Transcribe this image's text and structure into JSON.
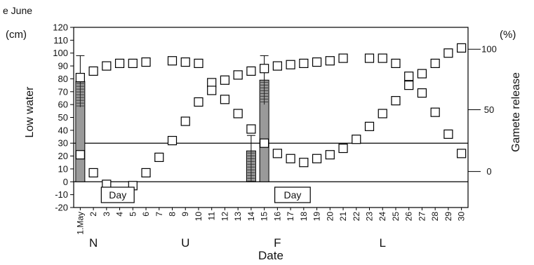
{
  "chart_data": {
    "type": "scatter",
    "title": "e June",
    "left_axis": {
      "unit": "(cm)",
      "label": "Low water",
      "ylim": [
        -20,
        120
      ],
      "ticks": [
        -20,
        -10,
        0,
        10,
        20,
        30,
        40,
        50,
        60,
        70,
        80,
        90,
        100,
        110,
        120
      ]
    },
    "right_axis": {
      "unit": "(%)",
      "label": "Gamete release",
      "ticks": [
        0,
        50,
        100
      ],
      "tick_positions_in_left_units": [
        8,
        56,
        103
      ]
    },
    "xlabel": "Date",
    "x_ticks": [
      "1.May",
      "2",
      "3",
      "4",
      "5",
      "6",
      "7",
      "8",
      "9",
      "10",
      "11",
      "12",
      "13",
      "14",
      "15",
      "16",
      "17",
      "18",
      "19",
      "20",
      "21",
      "22",
      "23",
      "24",
      "25",
      "26",
      "27",
      "28",
      "29",
      "30"
    ],
    "moon_phases": [
      {
        "label": "N",
        "x": 2
      },
      {
        "label": "U",
        "x": 9
      },
      {
        "label": "F",
        "x": 16
      },
      {
        "label": "L",
        "x": 24
      }
    ],
    "day_boxes": [
      {
        "label": "Day",
        "x_from": 2.6,
        "x_to": 5.1
      },
      {
        "label": "Day",
        "x_from": 15.8,
        "x_to": 18.5
      }
    ],
    "reference_lines": [
      {
        "y": 30
      },
      {
        "y": 0
      }
    ],
    "series": [
      {
        "marker": "square",
        "points": [
          [
            1,
            81
          ],
          [
            2,
            86
          ],
          [
            3,
            90
          ],
          [
            4,
            92
          ],
          [
            5,
            92
          ],
          [
            6,
            93
          ],
          [
            8,
            94
          ],
          [
            9,
            93
          ],
          [
            10,
            92
          ],
          [
            11,
            77
          ],
          [
            12,
            79
          ],
          [
            13,
            83
          ],
          [
            14,
            86
          ],
          [
            15,
            88
          ],
          [
            16,
            90
          ],
          [
            17,
            91
          ],
          [
            18,
            92
          ],
          [
            19,
            93
          ],
          [
            20,
            94
          ],
          [
            21,
            96
          ],
          [
            23,
            96
          ],
          [
            24,
            96
          ],
          [
            25,
            92
          ],
          [
            26,
            82
          ],
          [
            27,
            84
          ],
          [
            28,
            92
          ],
          [
            29,
            100
          ],
          [
            30,
            104
          ]
        ]
      },
      {
        "marker": "square",
        "points": [
          [
            1,
            21
          ],
          [
            2,
            7
          ],
          [
            3,
            -2
          ],
          [
            5,
            -3
          ],
          [
            6,
            7
          ],
          [
            7,
            19
          ],
          [
            8,
            32
          ],
          [
            9,
            47
          ],
          [
            10,
            62
          ],
          [
            11,
            71
          ],
          [
            12,
            64
          ],
          [
            13,
            53
          ],
          [
            14,
            41
          ],
          [
            15,
            30
          ],
          [
            16,
            22
          ],
          [
            17,
            18
          ],
          [
            18,
            15
          ],
          [
            19,
            18
          ],
          [
            20,
            21
          ],
          [
            21,
            26
          ],
          [
            22,
            33
          ],
          [
            23,
            43
          ],
          [
            24,
            53
          ],
          [
            25,
            63
          ],
          [
            26,
            75
          ],
          [
            27,
            69
          ],
          [
            28,
            54
          ],
          [
            29,
            37
          ],
          [
            30,
            22
          ]
        ]
      }
    ],
    "bars": [
      {
        "x": 1,
        "y": 78,
        "error_top": 98,
        "fill": "#9a9a9a",
        "hatch_from": 58,
        "hatch_to": 78
      },
      {
        "x": 14,
        "y": 24,
        "error_top": 36,
        "fill": "#9a9a9a",
        "hatch_from": 0,
        "hatch_to": 24
      },
      {
        "x": 15,
        "y": 79,
        "error_top": 98,
        "fill": "#9a9a9a",
        "hatch_from": 60,
        "hatch_to": 79
      }
    ]
  }
}
